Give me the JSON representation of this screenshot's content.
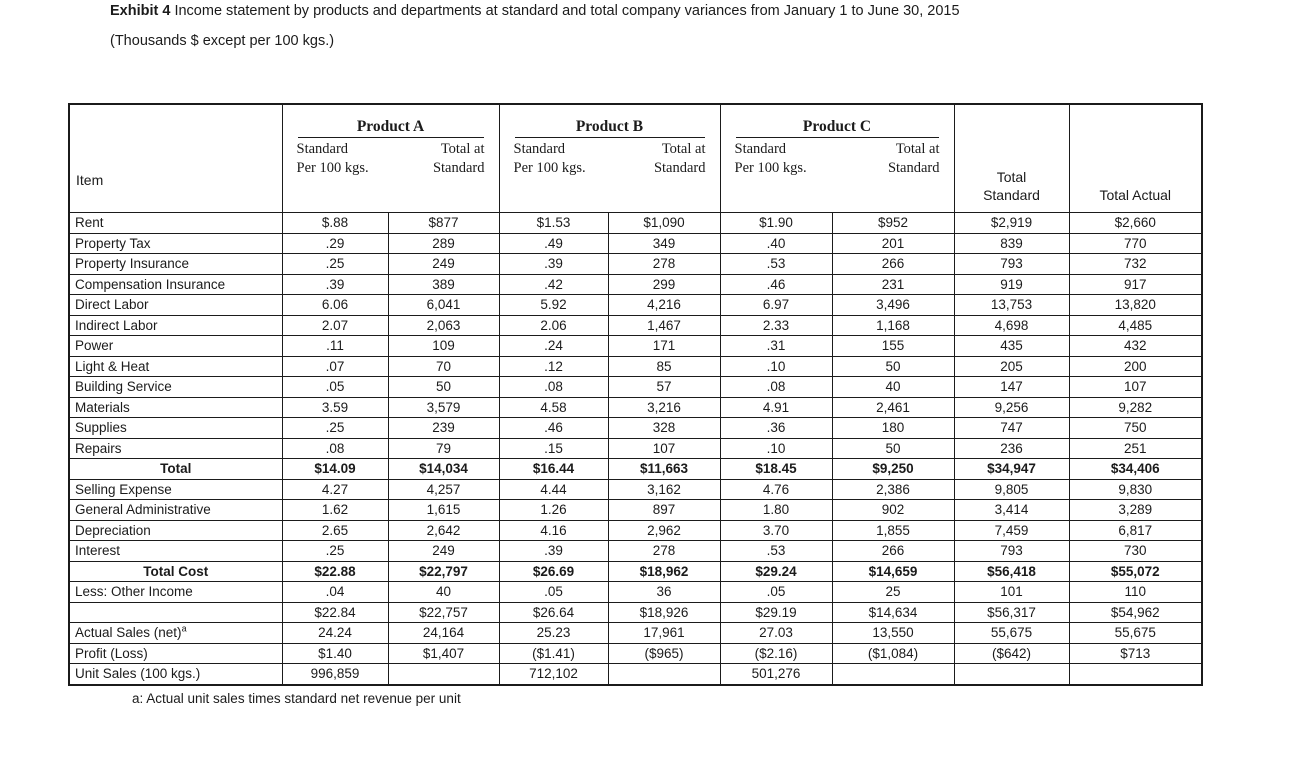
{
  "title": {
    "exhibit_label": "Exhibit 4",
    "text": "Income statement by products and departments at standard and total company variances from January 1 to June 30, 2015"
  },
  "subtitle": "(Thousands $ except per 100 kgs.)",
  "table": {
    "item_header": "Item",
    "groups": [
      {
        "label": "Product A"
      },
      {
        "label": "Product B"
      },
      {
        "label": "Product C"
      }
    ],
    "subheader": {
      "standard_line1": "Standard",
      "standard_line2": "Per 100 kgs.",
      "total_line1": "Total at",
      "total_line2": "Standard"
    },
    "total_standard_header": {
      "line1": "Total",
      "line2": "Standard"
    },
    "total_actual_header": "Total Actual",
    "rows": [
      {
        "label": "Rent",
        "values": [
          "$.88",
          "$877",
          "$1.53",
          "$1,090",
          "$1.90",
          "$952",
          "$2,919",
          "$2,660"
        ]
      },
      {
        "label": "Property Tax",
        "values": [
          ".29",
          "289",
          ".49",
          "349",
          ".40",
          "201",
          "839",
          "770"
        ]
      },
      {
        "label": "Property Insurance",
        "values": [
          ".25",
          "249",
          ".39",
          "278",
          ".53",
          "266",
          "793",
          "732"
        ]
      },
      {
        "label": "Compensation Insurance",
        "values": [
          ".39",
          "389",
          ".42",
          "299",
          ".46",
          "231",
          "919",
          "917"
        ]
      },
      {
        "label": "Direct Labor",
        "values": [
          "6.06",
          "6,041",
          "5.92",
          "4,216",
          "6.97",
          "3,496",
          "13,753",
          "13,820"
        ]
      },
      {
        "label": "Indirect Labor",
        "values": [
          "2.07",
          "2,063",
          "2.06",
          "1,467",
          "2.33",
          "1,168",
          "4,698",
          "4,485"
        ]
      },
      {
        "label": "Power",
        "values": [
          ".11",
          "109",
          ".24",
          "171",
          ".31",
          "155",
          "435",
          "432"
        ]
      },
      {
        "label": "Light & Heat",
        "values": [
          ".07",
          "70",
          ".12",
          "85",
          ".10",
          "50",
          "205",
          "200"
        ]
      },
      {
        "label": "Building Service",
        "values": [
          ".05",
          "50",
          ".08",
          "57",
          ".08",
          "40",
          "147",
          "107"
        ]
      },
      {
        "label": "Materials",
        "values": [
          "3.59",
          "3,579",
          "4.58",
          "3,216",
          "4.91",
          "2,461",
          "9,256",
          "9,282"
        ]
      },
      {
        "label": "Supplies",
        "values": [
          ".25",
          "239",
          ".46",
          "328",
          ".36",
          "180",
          "747",
          "750"
        ]
      },
      {
        "label": "Repairs",
        "values": [
          ".08",
          "79",
          ".15",
          "107",
          ".10",
          "50",
          "236",
          "251"
        ]
      },
      {
        "label": "Total",
        "bold": true,
        "center_label": true,
        "values": [
          "$14.09",
          "$14,034",
          "$16.44",
          "$11,663",
          "$18.45",
          "$9,250",
          "$34,947",
          "$34,406"
        ]
      },
      {
        "label": "Selling Expense",
        "values": [
          "4.27",
          "4,257",
          "4.44",
          "3,162",
          "4.76",
          "2,386",
          "9,805",
          "9,830"
        ]
      },
      {
        "label": "General Administrative",
        "values": [
          "1.62",
          "1,615",
          "1.26",
          "897",
          "1.80",
          "902",
          "3,414",
          "3,289"
        ]
      },
      {
        "label": "Depreciation",
        "values": [
          "2.65",
          "2,642",
          "4.16",
          "2,962",
          "3.70",
          "1,855",
          "7,459",
          "6,817"
        ]
      },
      {
        "label": "Interest",
        "values": [
          ".25",
          "249",
          ".39",
          "278",
          ".53",
          "266",
          "793",
          "730"
        ]
      },
      {
        "label": "Total Cost",
        "bold": true,
        "center_label": true,
        "values": [
          "$22.88",
          "$22,797",
          "$26.69",
          "$18,962",
          "$29.24",
          "$14,659",
          "$56,418",
          "$55,072"
        ]
      },
      {
        "label": "Less: Other Income",
        "values": [
          ".04",
          "40",
          ".05",
          "36",
          ".05",
          "25",
          "101",
          "110"
        ]
      },
      {
        "label": "",
        "values": [
          "$22.84",
          "$22,757",
          "$26.64",
          "$18,926",
          "$29.19",
          "$14,634",
          "$56,317",
          "$54,962"
        ]
      },
      {
        "label": "Actual Sales (net)",
        "label_sup": "a",
        "values": [
          "24.24",
          "24,164",
          "25.23",
          "17,961",
          "27.03",
          "13,550",
          "55,675",
          "55,675"
        ]
      },
      {
        "label": "Profit (Loss)",
        "values": [
          "$1.40",
          "$1,407",
          "($1.41)",
          "($965)",
          "($2.16)",
          "($1,084)",
          "($642)",
          "$713"
        ]
      },
      {
        "label": "Unit Sales (100 kgs.)",
        "values": [
          "996,859",
          "",
          "712,102",
          "",
          "501,276",
          "",
          "",
          ""
        ]
      }
    ]
  },
  "footnote": "a: Actual unit sales times standard net revenue per unit"
}
